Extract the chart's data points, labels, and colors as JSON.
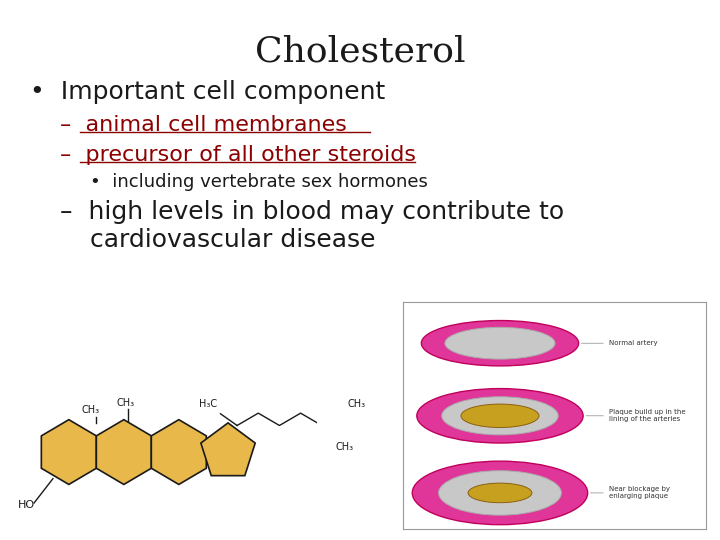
{
  "title": "Cholesterol",
  "title_fontsize": 26,
  "title_color": "#1a1a1a",
  "bg_color": "#ffffff",
  "bullet1": "Important cell component",
  "bullet1_fontsize": 18,
  "dash1": "animal cell membranes",
  "dash1_color": "#8B0000",
  "dash2": "precursor of all other steroids",
  "dash2_color": "#8B0000",
  "sub_bullet": "including vertebrate sex hormones",
  "sub_bullet_fontsize": 13,
  "dash3_line1": "high levels in blood may contribute to",
  "dash3_line2": "cardiovascular disease",
  "dash3_color": "#1a1a1a",
  "dash_fontsize": 16,
  "dash3_fontsize": 18,
  "text_color": "#1a1a1a",
  "underline_color": "#8B0000",
  "gold": "#E8B84B",
  "dark": "#1a1a1a",
  "artery_pink": "#E0369A",
  "artery_dark_pink": "#C0005A",
  "artery_white": "#f5f0f0",
  "artery_gold": "#C8A020",
  "artery_plaque_fill": "#D4B060"
}
